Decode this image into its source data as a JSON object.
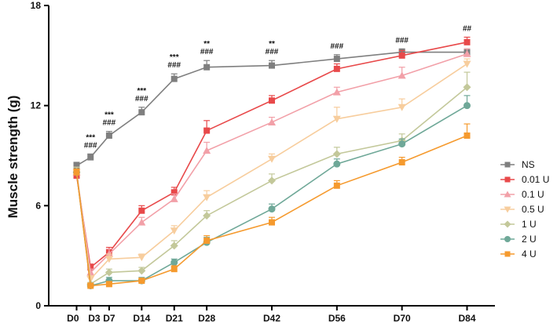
{
  "chart_data": {
    "type": "line",
    "title": "",
    "xlabel": "",
    "ylabel": "Muscle strength (g)",
    "ylim": [
      0,
      18
    ],
    "yticks": [
      0,
      6,
      12,
      18
    ],
    "grid": false,
    "legend_position": "right",
    "categories": [
      "D0",
      "D3",
      "D7",
      "D14",
      "D21",
      "D28",
      "D42",
      "D56",
      "D70",
      "D84"
    ],
    "x_days": [
      0,
      3,
      7,
      14,
      21,
      28,
      42,
      56,
      70,
      84
    ],
    "series": [
      {
        "name": "NS",
        "color": "#7f7f7f",
        "marker": "square",
        "values": [
          8.4,
          8.9,
          10.2,
          11.6,
          13.6,
          14.3,
          14.4,
          14.8,
          15.2,
          15.2
        ],
        "errors": [
          0.2,
          0.2,
          0.25,
          0.3,
          0.3,
          0.4,
          0.3,
          0.25,
          0.2,
          0.2
        ]
      },
      {
        "name": "0.01 U",
        "color": "#e8494a",
        "marker": "square",
        "values": [
          7.8,
          2.3,
          3.2,
          5.7,
          6.8,
          10.5,
          12.3,
          14.2,
          15.0,
          15.8
        ],
        "errors": [
          0.3,
          0.2,
          0.3,
          0.3,
          0.3,
          0.6,
          0.3,
          0.3,
          0.3,
          0.3
        ]
      },
      {
        "name": "0.1 U",
        "color": "#f2a0a8",
        "marker": "triangle-up",
        "values": [
          8.0,
          2.0,
          3.1,
          5.0,
          6.4,
          9.3,
          11.0,
          12.8,
          13.8,
          15.1
        ],
        "errors": [
          0.3,
          0.2,
          0.3,
          0.3,
          0.3,
          0.5,
          0.3,
          0.3,
          0.5,
          0.3
        ]
      },
      {
        "name": "0.5 U",
        "color": "#f7cd9d",
        "marker": "triangle-down",
        "values": [
          8.0,
          1.6,
          2.8,
          2.9,
          4.5,
          6.5,
          8.8,
          11.2,
          11.9,
          14.5
        ],
        "errors": [
          0.3,
          0.2,
          0.3,
          0.2,
          0.3,
          0.4,
          0.3,
          0.7,
          0.5,
          0.3
        ]
      },
      {
        "name": "1 U",
        "color": "#c3c89a",
        "marker": "diamond",
        "values": [
          8.0,
          1.3,
          2.0,
          2.1,
          3.6,
          5.4,
          7.5,
          9.1,
          9.9,
          13.1
        ],
        "errors": [
          0.3,
          0.1,
          0.2,
          0.2,
          0.3,
          0.3,
          0.4,
          0.4,
          0.4,
          0.9
        ]
      },
      {
        "name": "2 U",
        "color": "#6fa898",
        "marker": "circle",
        "values": [
          8.0,
          1.2,
          1.5,
          1.5,
          2.6,
          3.8,
          5.8,
          8.5,
          9.7,
          12.0
        ],
        "errors": [
          0.2,
          0.1,
          0.2,
          0.2,
          0.2,
          0.3,
          0.3,
          0.3,
          0.3,
          0.6
        ]
      },
      {
        "name": "4 U",
        "color": "#f59a2e",
        "marker": "square",
        "values": [
          8.0,
          1.2,
          1.3,
          1.5,
          2.2,
          3.9,
          5.0,
          7.2,
          8.6,
          10.2
        ],
        "errors": [
          0.2,
          0.1,
          0.1,
          0.1,
          0.2,
          0.3,
          0.3,
          0.3,
          0.3,
          0.7
        ]
      }
    ],
    "annotations": [
      {
        "x": "D3",
        "lines": [
          "***",
          "###"
        ]
      },
      {
        "x": "D7",
        "lines": [
          "***",
          "###"
        ]
      },
      {
        "x": "D14",
        "lines": [
          "***",
          "###"
        ]
      },
      {
        "x": "D21",
        "lines": [
          "***",
          "###"
        ]
      },
      {
        "x": "D28",
        "lines": [
          "**",
          "###"
        ]
      },
      {
        "x": "D42",
        "lines": [
          "**",
          "###"
        ]
      },
      {
        "x": "D56",
        "lines": [
          "###"
        ]
      },
      {
        "x": "D70",
        "lines": [
          "###"
        ]
      },
      {
        "x": "D84",
        "lines": [
          "##"
        ]
      }
    ]
  }
}
